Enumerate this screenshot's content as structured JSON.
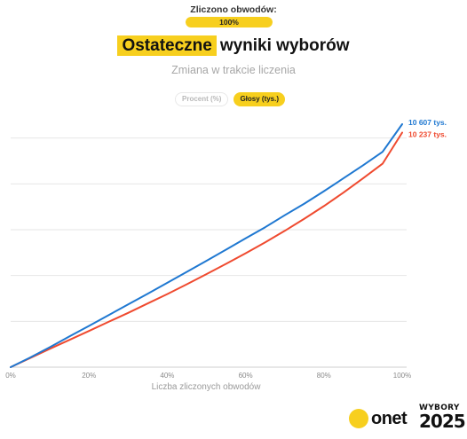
{
  "header": {
    "counted_label": "Zliczono obwodów:",
    "progress_value": 100,
    "progress_text": "100%",
    "title_highlight": "Ostateczne",
    "title_rest": "wyniki wyborów",
    "subtitle": "Zmiana w trakcie liczenia"
  },
  "toggle": {
    "percent_label": "Procent (%)",
    "votes_label": "Głosy (tys.)",
    "selected": "votes"
  },
  "colors": {
    "accent": "#f7cf1e",
    "series_blue": "#1f78d1",
    "series_red": "#ef4a2f",
    "grid": "#e6e6e6"
  },
  "chart_data": {
    "type": "line",
    "xlabel": "Liczba zliczonych obwodów",
    "ylabel": "",
    "x_tick_labels": [
      "0%",
      "20%",
      "40%",
      "60%",
      "80%",
      "100%"
    ],
    "xlim": [
      0,
      100
    ],
    "ylim": [
      0,
      12000
    ],
    "y_grid_values": [
      2000,
      4000,
      6000,
      8000,
      10000
    ],
    "y_tick_labels_shown": false,
    "grid": true,
    "series": [
      {
        "name": "",
        "end_label": "10 607 tys.",
        "color": "#1f78d1",
        "x": [
          0,
          5,
          10,
          15,
          20,
          25,
          30,
          35,
          40,
          45,
          50,
          55,
          60,
          65,
          70,
          75,
          80,
          85,
          90,
          95,
          100
        ],
        "y": [
          0,
          420,
          870,
          1340,
          1800,
          2270,
          2740,
          3200,
          3680,
          4160,
          4640,
          5130,
          5620,
          6110,
          6630,
          7140,
          7680,
          8240,
          8810,
          9400,
          10607
        ]
      },
      {
        "name": "",
        "end_label": "10 237 tys.",
        "color": "#ef4a2f",
        "x": [
          0,
          5,
          10,
          15,
          20,
          25,
          30,
          35,
          40,
          45,
          50,
          55,
          60,
          65,
          70,
          75,
          80,
          85,
          90,
          95,
          100
        ],
        "y": [
          0,
          400,
          800,
          1190,
          1580,
          1980,
          2370,
          2780,
          3190,
          3620,
          4060,
          4510,
          4970,
          5450,
          5950,
          6480,
          7030,
          7620,
          8240,
          8880,
          10237
        ]
      }
    ]
  },
  "logos": {
    "onet": "onet",
    "wybory_top": "WYBORY",
    "wybory_year": "2025"
  }
}
